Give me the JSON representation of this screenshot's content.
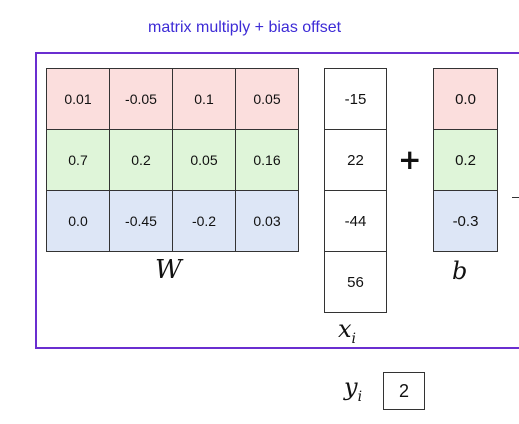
{
  "title": "matrix multiply + bias offset",
  "W": {
    "symbol": "W",
    "rows": [
      [
        "0.01",
        "-0.05",
        "0.1",
        "0.05"
      ],
      [
        "0.7",
        "0.2",
        "0.05",
        "0.16"
      ],
      [
        "0.0",
        "-0.45",
        "-0.2",
        "0.03"
      ]
    ]
  },
  "x": {
    "symbol": "x",
    "subscript": "i",
    "values": [
      "-15",
      "22",
      "-44",
      "56"
    ]
  },
  "operator": "+",
  "b": {
    "symbol": "b",
    "values": [
      "0.0",
      "0.2",
      "-0.3"
    ]
  },
  "y": {
    "symbol": "y",
    "subscript": "i",
    "value": "2"
  },
  "colors": {
    "title": "#3d2bd6",
    "frame": "#6a2ed0",
    "row1": "#fbdedd",
    "row2": "#dff5d9",
    "row3": "#dde6f6"
  }
}
